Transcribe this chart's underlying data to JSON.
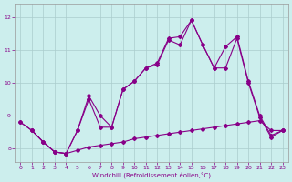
{
  "xlabel": "Windchill (Refroidissement éolien,°C)",
  "background_color": "#cceeed",
  "grid_color": "#aacccc",
  "line_color": "#880088",
  "xlim": [
    -0.5,
    23.5
  ],
  "ylim": [
    7.6,
    12.4
  ],
  "yticks": [
    8,
    9,
    10,
    11,
    12
  ],
  "xticks": [
    0,
    1,
    2,
    3,
    4,
    5,
    6,
    7,
    8,
    9,
    10,
    11,
    12,
    13,
    14,
    15,
    16,
    17,
    18,
    19,
    20,
    21,
    22,
    23
  ],
  "series_bottom_x": [
    0,
    1,
    2,
    3,
    4,
    5,
    6,
    7,
    8,
    9,
    10,
    11,
    12,
    13,
    14,
    15,
    16,
    17,
    18,
    19,
    20,
    21,
    22,
    23
  ],
  "series_bottom_y": [
    8.8,
    8.55,
    8.2,
    7.9,
    7.85,
    7.95,
    8.05,
    8.1,
    8.15,
    8.2,
    8.3,
    8.35,
    8.4,
    8.45,
    8.5,
    8.55,
    8.6,
    8.65,
    8.7,
    8.75,
    8.8,
    8.85,
    8.55,
    8.55
  ],
  "series_mid_x": [
    0,
    1,
    2,
    3,
    4,
    5,
    6,
    7,
    8,
    9,
    10,
    11,
    12,
    13,
    14,
    15,
    16,
    17,
    18,
    19,
    20,
    21,
    22,
    23
  ],
  "series_mid_y": [
    8.8,
    8.55,
    8.2,
    7.9,
    7.85,
    8.55,
    9.6,
    9.0,
    8.65,
    9.8,
    10.05,
    10.45,
    10.6,
    11.35,
    11.4,
    11.9,
    11.15,
    10.45,
    11.1,
    11.4,
    10.05,
    9.0,
    8.4,
    8.55
  ],
  "series_top_x": [
    1,
    2,
    3,
    4,
    5,
    6,
    7,
    8,
    9,
    10,
    11,
    12,
    13,
    14,
    15,
    16,
    17,
    18,
    19,
    20,
    21,
    22,
    23
  ],
  "series_top_y": [
    8.55,
    8.2,
    7.9,
    7.85,
    8.55,
    9.5,
    8.65,
    8.65,
    9.8,
    10.05,
    10.45,
    10.55,
    11.3,
    11.15,
    11.9,
    11.15,
    10.45,
    10.45,
    11.35,
    10.0,
    8.95,
    8.35,
    8.55
  ]
}
